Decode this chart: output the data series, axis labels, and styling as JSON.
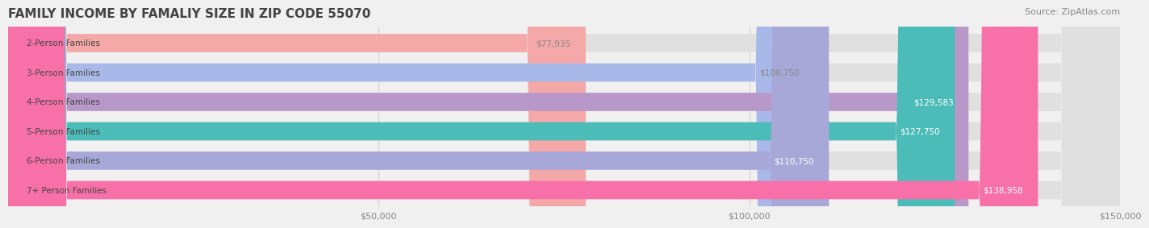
{
  "title": "FAMILY INCOME BY FAMALIY SIZE IN ZIP CODE 55070",
  "source": "Source: ZipAtlas.com",
  "categories": [
    "2-Person Families",
    "3-Person Families",
    "4-Person Families",
    "5-Person Families",
    "6-Person Families",
    "7+ Person Families"
  ],
  "values": [
    77935,
    108750,
    129583,
    127750,
    110750,
    138958
  ],
  "labels": [
    "$77,935",
    "$108,750",
    "$129,583",
    "$127,750",
    "$110,750",
    "$138,958"
  ],
  "bar_colors": [
    "#F4A8A8",
    "#A8B8E8",
    "#B898C8",
    "#4BBCB8",
    "#A8A8D8",
    "#F870A8"
  ],
  "label_colors": [
    "#888888",
    "#888888",
    "#ffffff",
    "#ffffff",
    "#ffffff",
    "#ffffff"
  ],
  "xlim": [
    0,
    150000
  ],
  "xticks": [
    0,
    50000,
    100000,
    150000
  ],
  "xtick_labels": [
    "$50,000",
    "$100,000",
    "$150,000"
  ],
  "background_color": "#f0f0f0",
  "bar_background": "#e8e8e8",
  "title_fontsize": 11,
  "source_fontsize": 8
}
